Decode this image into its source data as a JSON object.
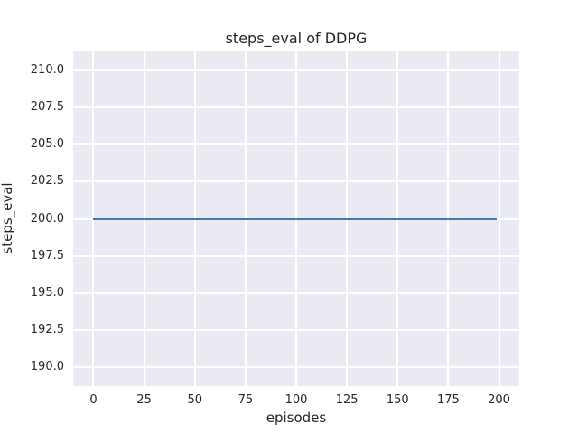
{
  "figure": {
    "background": "#ffffff",
    "plot_background": "#eaeaf2",
    "grid_color": "#ffffff",
    "text_color": "#262626"
  },
  "chart_data": {
    "type": "line",
    "title": "steps_eval of DDPG",
    "xlabel": "episodes",
    "ylabel": "steps_eval",
    "xlim": [
      -10,
      210
    ],
    "ylim": [
      188.75,
      211.25
    ],
    "grid": true,
    "legend": false,
    "xticks": {
      "values": [
        0,
        25,
        50,
        75,
        100,
        125,
        150,
        175,
        200
      ],
      "labels": [
        "0",
        "25",
        "50",
        "75",
        "100",
        "125",
        "150",
        "175",
        "200"
      ]
    },
    "yticks": {
      "values": [
        190.0,
        192.5,
        195.0,
        197.5,
        200.0,
        202.5,
        205.0,
        207.5,
        210.0
      ],
      "labels": [
        "190.0",
        "192.5",
        "195.0",
        "197.5",
        "200.0",
        "202.5",
        "205.0",
        "207.5",
        "210.0"
      ]
    },
    "series": [
      {
        "name": "steps_eval",
        "color": "#4c72b0",
        "x": [
          0,
          199
        ],
        "y": [
          200,
          200
        ],
        "note": "constant value 200 for every episode from 0 to 199"
      }
    ]
  }
}
